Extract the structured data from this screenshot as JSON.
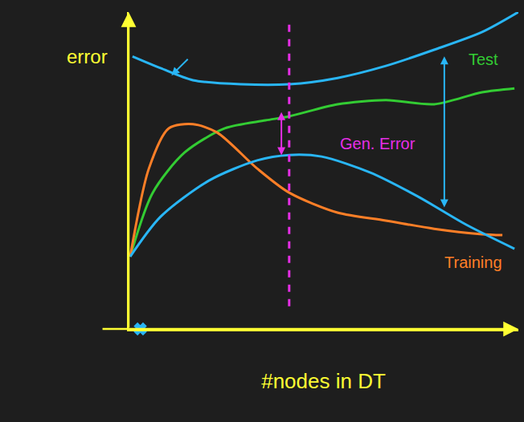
{
  "chart_data": {
    "type": "line",
    "xlabel": "#nodes in DT",
    "ylabel": "error",
    "xlim": [
      0,
      10
    ],
    "ylim": [
      0,
      10
    ],
    "tick_labels": false,
    "grid": false,
    "series": [
      {
        "color": "#29b6f6",
        "line_style": "solid",
        "x": [
          0.1,
          0.82,
          1.65,
          2.89,
          4.12,
          5.36,
          6.6,
          7.84,
          9.07,
          10
        ],
        "values": [
          8.6,
          8.23,
          7.85,
          7.72,
          7.72,
          7.92,
          8.3,
          8.81,
          9.37,
          10
        ]
      },
      {
        "color": "#33cc33",
        "line_style": "solid",
        "x": [
          0.04,
          0.62,
          1.44,
          2.47,
          3.51,
          4.12,
          5.36,
          6.6,
          7.84,
          9.07,
          9.9
        ],
        "values": [
          2.28,
          4.3,
          5.57,
          6.33,
          6.58,
          6.71,
          7.09,
          7.22,
          7.09,
          7.47,
          7.59
        ]
      },
      {
        "color": "#ff7f27",
        "line_style": "solid",
        "x": [
          0.04,
          0.52,
          1.03,
          1.65,
          2.27,
          3.3,
          4.12,
          5.36,
          6.6,
          7.84,
          9.07,
          9.59
        ],
        "values": [
          2.28,
          5.06,
          6.33,
          6.46,
          6.2,
          5.06,
          4.3,
          3.67,
          3.42,
          3.16,
          2.99,
          2.96
        ]
      },
      {
        "color": "#29b6f6",
        "line_style": "solid",
        "x": [
          0.04,
          0.82,
          2.06,
          3.3,
          4.12,
          4.95,
          6.19,
          7.42,
          8.66,
          9.9
        ],
        "values": [
          2.28,
          3.54,
          4.68,
          5.32,
          5.49,
          5.44,
          4.94,
          4.18,
          3.29,
          2.53
        ]
      },
      {
        "color": "#e62ee6",
        "line_style": "dashed",
        "x": [
          4.12,
          4.12
        ],
        "values": [
          9.6,
          0.5
        ]
      },
      {
        "type": "scatter",
        "marker": "x",
        "color": "#29b6f6",
        "x": [
          0.3
        ],
        "values": [
          0
        ]
      }
    ],
    "annotations": [
      {
        "text": "Test",
        "x": 9.1,
        "y": 8.5,
        "color": "#33cc33"
      },
      {
        "text": "Gen. Error",
        "x": 6.4,
        "y": 5.85,
        "color": "#e62ee6"
      },
      {
        "text": "Training",
        "x": 8.85,
        "y": 2.1,
        "color": "#ff7f27"
      }
    ]
  }
}
